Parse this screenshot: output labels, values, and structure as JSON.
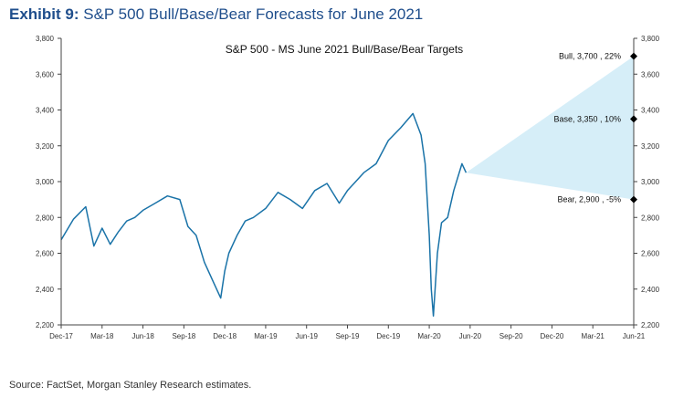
{
  "header": {
    "exhibit_label": "Exhibit 9:",
    "title": "S&P 500 Bull/Base/Bear Forecasts for June 2021"
  },
  "footer": {
    "source": "Source: FactSet, Morgan Stanley Research estimates."
  },
  "colors": {
    "line": "#1a73a8",
    "cone": "#d6eef8",
    "marker": "#000000",
    "title": "#1f4e8c",
    "axis": "#444444"
  },
  "chart_data": {
    "type": "line",
    "title": "S&P 500 - MS June 2021 Bull/Base/Bear Targets",
    "xlabel": "",
    "ylabel": "",
    "ylim": [
      2200,
      3800
    ],
    "yticks": [
      2200,
      2400,
      2600,
      2800,
      3000,
      3200,
      3400,
      3600,
      3800
    ],
    "ytick_labels": [
      "2,200",
      "2,400",
      "2,600",
      "2,800",
      "3,000",
      "3,200",
      "3,400",
      "3,600",
      "3,800"
    ],
    "secondary_y_axis": true,
    "grid": false,
    "x_labels": [
      "Dec-17",
      "Mar-18",
      "Jun-18",
      "Sep-18",
      "Dec-18",
      "Mar-19",
      "Jun-19",
      "Sep-19",
      "Dec-19",
      "Mar-20",
      "Jun-20",
      "Sep-20",
      "Dec-20",
      "Mar-21",
      "Jun-21"
    ],
    "x_index_range": [
      0,
      14
    ],
    "series": [
      {
        "x": [
          0,
          0.3,
          0.6,
          0.8,
          1.0,
          1.2,
          1.4,
          1.6,
          1.8,
          2.0,
          2.3,
          2.6,
          2.9,
          3.1,
          3.3,
          3.5,
          3.7,
          3.9,
          4.0,
          4.1,
          4.3,
          4.5,
          4.7,
          5.0,
          5.3,
          5.6,
          5.9,
          6.2,
          6.5,
          6.8,
          7.0,
          7.2,
          7.4,
          7.7,
          8.0,
          8.3,
          8.6,
          8.8,
          8.9,
          9.0,
          9.05,
          9.1,
          9.2,
          9.3,
          9.45,
          9.6,
          9.8,
          9.9
        ],
        "y": [
          2675,
          2790,
          2860,
          2640,
          2740,
          2650,
          2720,
          2780,
          2800,
          2840,
          2880,
          2920,
          2900,
          2750,
          2700,
          2550,
          2450,
          2350,
          2500,
          2600,
          2700,
          2780,
          2800,
          2850,
          2940,
          2900,
          2850,
          2950,
          2990,
          2880,
          2950,
          3000,
          3050,
          3100,
          3230,
          3300,
          3380,
          3260,
          3100,
          2700,
          2400,
          2250,
          2600,
          2770,
          2800,
          2950,
          3100,
          3050
        ]
      }
    ],
    "forecast_start": {
      "x": 9.9,
      "y": 3050
    },
    "forecast_horizon_x": 14,
    "scenarios": [
      {
        "label": "Bull, 3,700 , 22%",
        "value": 3700,
        "change": "22%"
      },
      {
        "label": "Base, 3,350 , 10%",
        "value": 3350,
        "change": "10%"
      },
      {
        "label": "Bear, 2,900 , -5%",
        "value": 2900,
        "change": "-5%"
      }
    ]
  }
}
